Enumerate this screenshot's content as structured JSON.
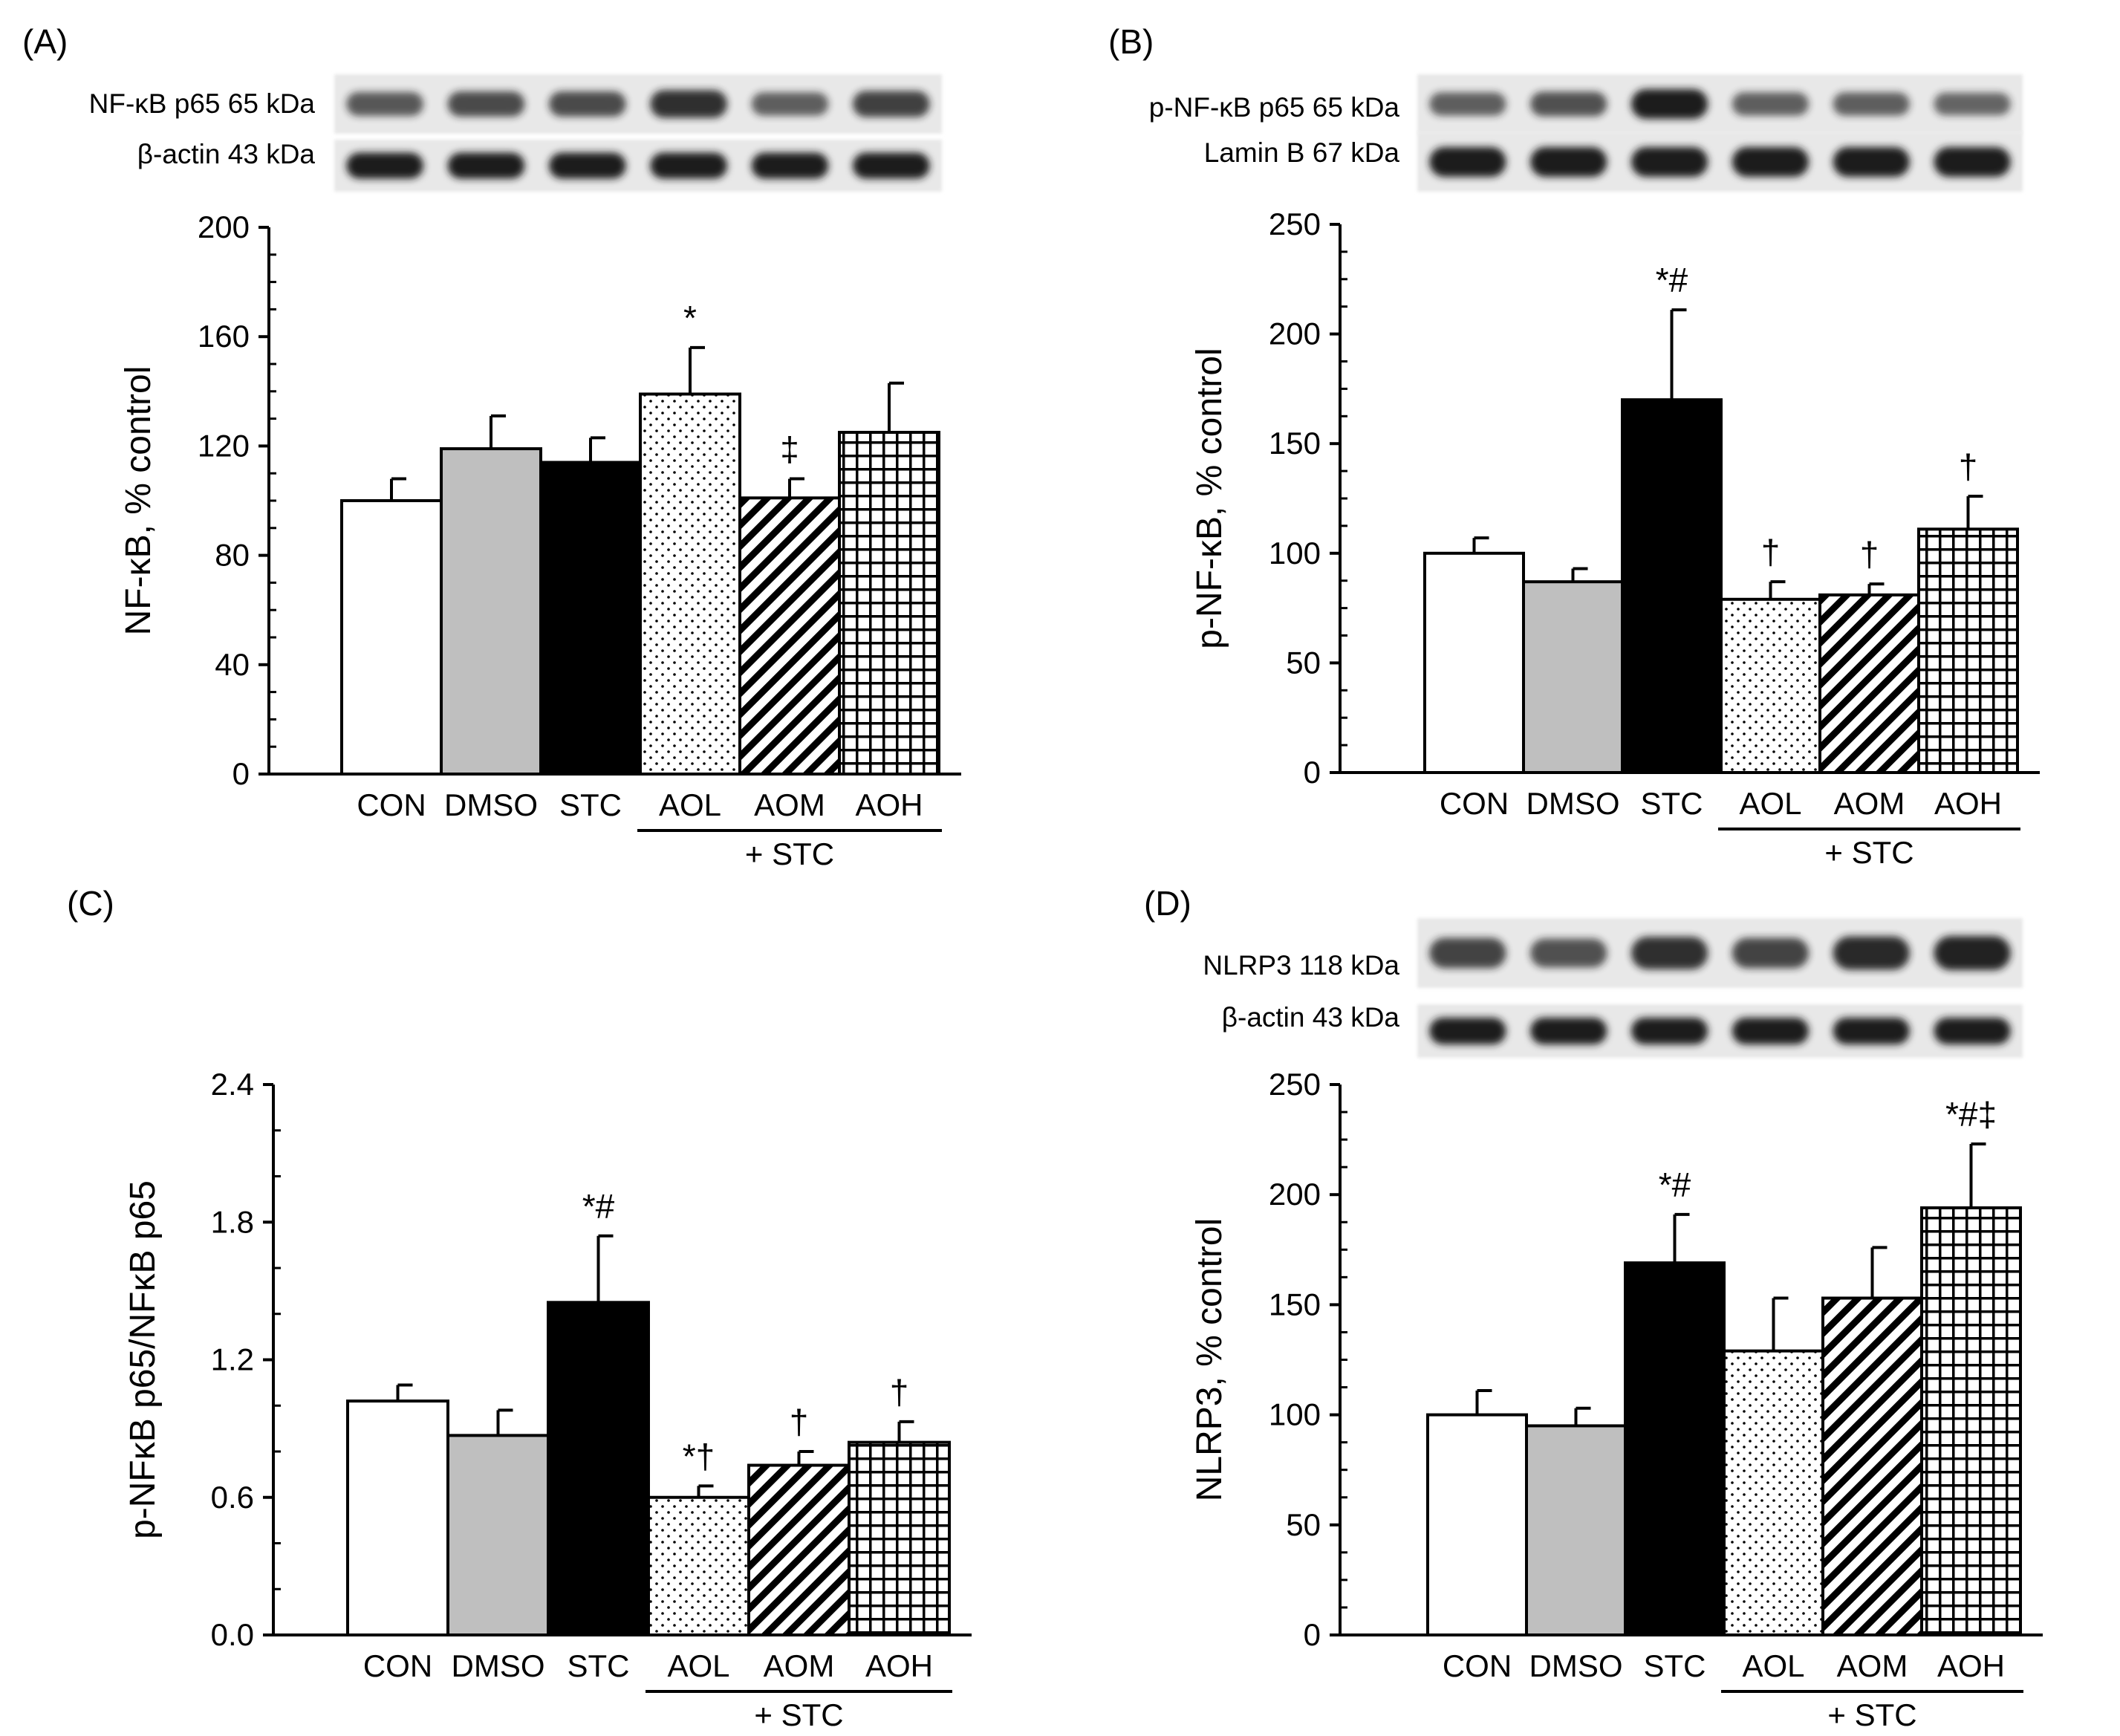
{
  "colors": {
    "axis": "#000000",
    "bar_edge": "#000000",
    "CON": "#ffffff",
    "DMSO": "#bfbfbf",
    "STC": "#000000",
    "blot_background": "#e8e8e8",
    "band": "#1a1a1a"
  },
  "fills": {
    "CON": "solid-white",
    "DMSO": "solid-gray",
    "STC": "solid-black",
    "AOL": "dotted",
    "AOM": "diagonal-hatch",
    "AOH": "square-grid"
  },
  "chart_data": [
    {
      "panel": "(A)",
      "type": "bar",
      "categories": [
        "CON",
        "DMSO",
        "STC",
        "AOL",
        "AOM",
        "AOH"
      ],
      "values": [
        100,
        119,
        114,
        139,
        101,
        125
      ],
      "errors": [
        8,
        12,
        9,
        17,
        7,
        18
      ],
      "significance": [
        "",
        "",
        "",
        "*",
        "‡",
        ""
      ],
      "ylabel": "NF-κB, % control",
      "ylim": [
        0,
        200
      ],
      "yticks": [
        "0",
        "40",
        "80",
        "120",
        "160",
        "200"
      ],
      "group_label": "+ STC",
      "blots": [
        {
          "label": "NF-κB p65 65 kDa",
          "intensity": [
            0.55,
            0.65,
            0.65,
            0.85,
            0.5,
            0.72
          ]
        },
        {
          "label": "β-actin 43 kDa",
          "intensity": [
            1,
            1,
            1,
            1,
            1,
            1
          ]
        }
      ]
    },
    {
      "panel": "(B)",
      "type": "bar",
      "categories": [
        "CON",
        "DMSO",
        "STC",
        "AOL",
        "AOM",
        "AOH"
      ],
      "values": [
        100,
        87,
        170,
        79,
        81,
        111
      ],
      "errors": [
        7,
        6,
        41,
        8,
        5,
        15
      ],
      "significance": [
        "",
        "",
        "*#",
        "†",
        "†",
        "†"
      ],
      "ylabel": "p-NF-κB, % control",
      "ylim": [
        0,
        250
      ],
      "yticks": [
        "0",
        "50",
        "100",
        "150",
        "200",
        "250"
      ],
      "group_label": "+ STC",
      "blots": [
        {
          "label": "p-NF-κB p65 65 kDa",
          "intensity": [
            0.5,
            0.6,
            1,
            0.5,
            0.5,
            0.45
          ]
        },
        {
          "label": "Lamin B 67 kDa",
          "intensity": [
            1,
            1,
            1,
            1,
            1,
            1
          ]
        }
      ]
    },
    {
      "panel": "(C)",
      "type": "bar",
      "categories": [
        "CON",
        "DMSO",
        "STC",
        "AOL",
        "AOM",
        "AOH"
      ],
      "values": [
        1.02,
        0.87,
        1.45,
        0.6,
        0.74,
        0.84
      ],
      "errors": [
        0.07,
        0.11,
        0.29,
        0.05,
        0.06,
        0.09
      ],
      "significance": [
        "",
        "",
        "*#",
        "*†",
        "†",
        "†"
      ],
      "ylabel": "p-NFκB p65/NFκB p65",
      "ylim": [
        0,
        2.4
      ],
      "yticks": [
        "0.0",
        "0.6",
        "1.2",
        "1.8",
        "2.4"
      ],
      "group_label": "+ STC",
      "blots": []
    },
    {
      "panel": "(D)",
      "type": "bar",
      "categories": [
        "CON",
        "DMSO",
        "STC",
        "AOL",
        "AOM",
        "AOH"
      ],
      "values": [
        100,
        95,
        169,
        129,
        153,
        194
      ],
      "errors": [
        11,
        8,
        22,
        24,
        23,
        29
      ],
      "significance": [
        "",
        "",
        "*#",
        "",
        "",
        "*#‡"
      ],
      "ylabel": "NLRP3, % control",
      "ylim": [
        0,
        250
      ],
      "yticks": [
        "0",
        "50",
        "100",
        "150",
        "200",
        "250"
      ],
      "group_label": "+ STC",
      "blots": [
        {
          "label": "NLRP3 118 kDa",
          "intensity": [
            0.7,
            0.6,
            0.85,
            0.7,
            0.9,
            0.95
          ]
        },
        {
          "label": "β-actin 43 kDa",
          "intensity": [
            1,
            1,
            1,
            1,
            1,
            1
          ]
        }
      ]
    }
  ]
}
